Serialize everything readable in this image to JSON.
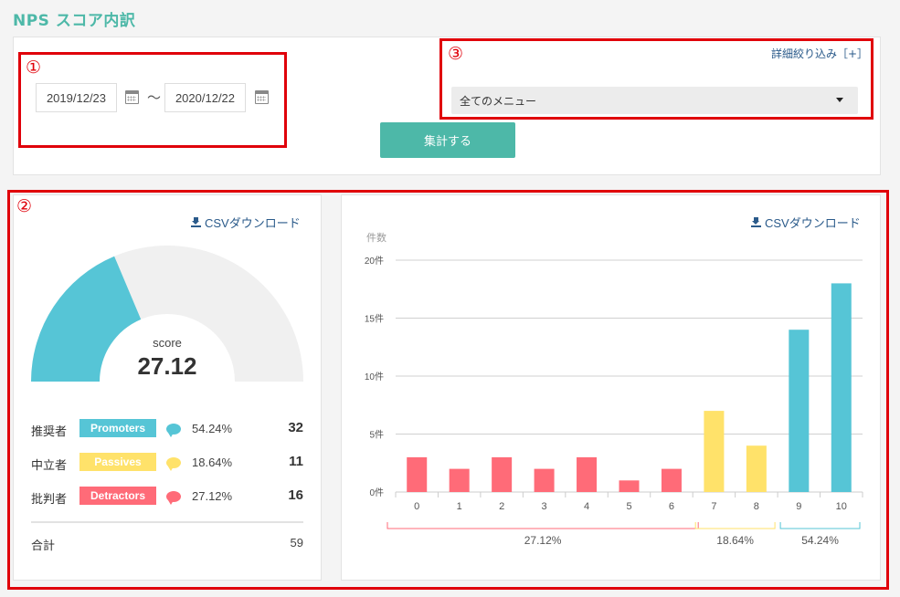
{
  "page_title": "NPS スコア内訳",
  "filters": {
    "annotation_1": "①",
    "annotation_3": "③",
    "date_from": "2019/12/23",
    "date_separator": "〜",
    "date_to": "2020/12/22",
    "detail_filter_link": "詳細絞り込み［+］",
    "menu_select_value": "全てのメニュー",
    "submit_label": "集計する"
  },
  "score_panel": {
    "annotation_2": "②",
    "csv_label": "CSVダウンロード",
    "score_label": "score",
    "score_value": "27.12",
    "gauge_fill_fraction": 0.3729,
    "rows": [
      {
        "label": "推奨者",
        "badge": "Promoters",
        "pct": "54.24%",
        "count": "32",
        "color": "#56c5d6"
      },
      {
        "label": "中立者",
        "badge": "Passives",
        "pct": "18.64%",
        "count": "11",
        "color": "#ffe26a"
      },
      {
        "label": "批判者",
        "badge": "Detractors",
        "pct": "27.12%",
        "count": "16",
        "color": "#ff6b78"
      }
    ],
    "total_label": "合計",
    "total_count": "59"
  },
  "chart_panel": {
    "csv_label": "CSVダウンロード"
  },
  "chart_data": {
    "type": "bar",
    "ylabel": "件数",
    "ylim": [
      0,
      20
    ],
    "yticks": [
      "0件",
      "5件",
      "10件",
      "15件",
      "20件"
    ],
    "categories": [
      "0",
      "1",
      "2",
      "3",
      "4",
      "5",
      "6",
      "7",
      "8",
      "9",
      "10"
    ],
    "values": [
      3,
      2,
      3,
      2,
      3,
      1,
      2,
      7,
      4,
      14,
      18
    ],
    "colors": [
      "#ff6b78",
      "#ff6b78",
      "#ff6b78",
      "#ff6b78",
      "#ff6b78",
      "#ff6b78",
      "#ff6b78",
      "#ffe26a",
      "#ffe26a",
      "#56c5d6",
      "#56c5d6"
    ],
    "groups": [
      {
        "from": 0,
        "to": 6,
        "label": "27.12%",
        "color": "#ff6b78"
      },
      {
        "from": 7,
        "to": 8,
        "label": "18.64%",
        "color": "#ffe26a"
      },
      {
        "from": 9,
        "to": 10,
        "label": "54.24%",
        "color": "#56c5d6"
      }
    ],
    "grid": true
  }
}
